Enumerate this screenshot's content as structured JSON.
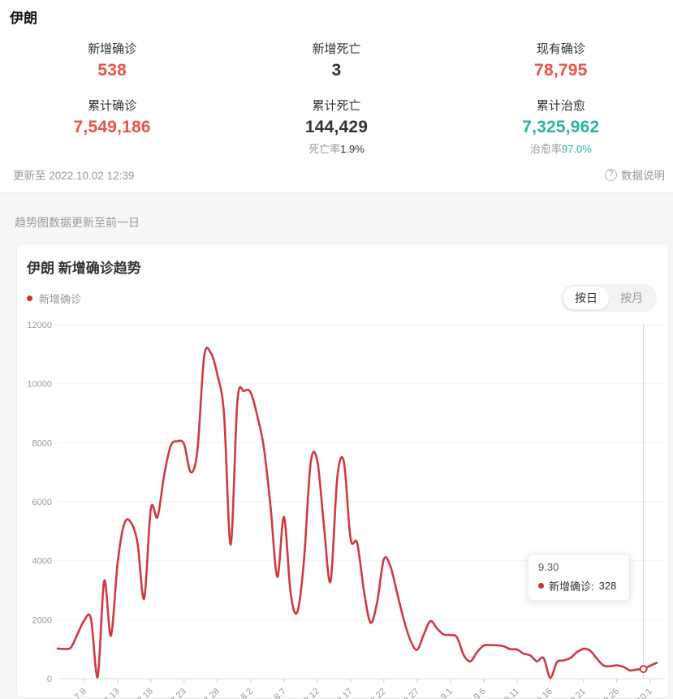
{
  "page": {
    "title": "伊朗"
  },
  "colors": {
    "stat_red": "#e8534a",
    "teal": "#29b3a3",
    "line_red": "#cf3a42",
    "dot_red": "#c5352f"
  },
  "stats": {
    "row1": [
      {
        "label": "新增确诊",
        "value": "538",
        "color": "red"
      },
      {
        "label": "新增死亡",
        "value": "3",
        "color": "dark"
      },
      {
        "label": "现有确诊",
        "value": "78,795",
        "color": "red"
      }
    ],
    "row2": [
      {
        "label": "累计确诊",
        "value": "7,549,186",
        "color": "red",
        "rate_prefix": "",
        "rate_value": ""
      },
      {
        "label": "累计死亡",
        "value": "144,429",
        "color": "dark",
        "rate_prefix": "死亡率",
        "rate_value": "1.9%"
      },
      {
        "label": "累计治愈",
        "value": "7,325,962",
        "color": "teal",
        "rate_prefix": "治愈率",
        "rate_value": "97.0%"
      }
    ]
  },
  "meta": {
    "updated_text": "更新至 2022.10.02 12:39",
    "help_glyph": "?",
    "data_note_label": "数据说明",
    "trend_note": "趋势图数据更新至前一日"
  },
  "chart_card": {
    "title": "伊朗 新增确诊趋势",
    "legend_label": "新增确诊",
    "toggles": [
      {
        "label": "按日",
        "active": true
      },
      {
        "label": "按月",
        "active": false
      }
    ],
    "tooltip": {
      "date": "9.30",
      "series_label": "新增确诊:",
      "value": "328"
    }
  },
  "chart_data": {
    "type": "line",
    "title": "伊朗 新增确诊趋势",
    "series_name": "新增确诊",
    "smooth": true,
    "grid": true,
    "legend_position": "top-left",
    "ylim": [
      0,
      12000
    ],
    "y_ticks": [
      0,
      2000,
      4000,
      6000,
      8000,
      10000,
      12000
    ],
    "x": [
      "7.4",
      "7.5",
      "7.6",
      "7.7",
      "7.8",
      "7.9",
      "7.10",
      "7.11",
      "7.12",
      "7.13",
      "7.14",
      "7.15",
      "7.16",
      "7.17",
      "7.18",
      "7.19",
      "7.20",
      "7.21",
      "7.22",
      "7.23",
      "7.24",
      "7.25",
      "7.26",
      "7.27",
      "7.28",
      "7.29",
      "7.30",
      "7.31",
      "8.1",
      "8.2",
      "8.3",
      "8.4",
      "8.5",
      "8.6",
      "8.7",
      "8.8",
      "8.9",
      "8.10",
      "8.11",
      "8.12",
      "8.13",
      "8.14",
      "8.15",
      "8.16",
      "8.17",
      "8.18",
      "8.19",
      "8.20",
      "8.21",
      "8.22",
      "8.23",
      "8.24",
      "8.25",
      "8.26",
      "8.27",
      "8.28",
      "8.29",
      "8.30",
      "8.31",
      "9.1",
      "9.2",
      "9.3",
      "9.4",
      "9.5",
      "9.6",
      "9.7",
      "9.8",
      "9.9",
      "9.10",
      "9.11",
      "9.12",
      "9.13",
      "9.14",
      "9.15",
      "9.16",
      "9.17",
      "9.18",
      "9.19",
      "9.20",
      "9.21",
      "9.22",
      "9.23",
      "9.24",
      "9.25",
      "9.26",
      "9.27",
      "9.28",
      "9.29",
      "9.30",
      "10.1",
      "10.2"
    ],
    "values": [
      1020,
      1010,
      1060,
      1520,
      1980,
      2030,
      40,
      3320,
      1460,
      3900,
      5250,
      5300,
      4600,
      2720,
      5760,
      5480,
      6900,
      7900,
      8050,
      7950,
      7000,
      7750,
      10900,
      11050,
      10300,
      8950,
      4550,
      9400,
      9750,
      9700,
      8900,
      7800,
      5800,
      3450,
      5480,
      2900,
      2260,
      4000,
      7300,
      7400,
      5200,
      3300,
      6800,
      7350,
      4750,
      4600,
      3000,
      1900,
      2600,
      4050,
      3800,
      2900,
      2000,
      1300,
      980,
      1500,
      1950,
      1700,
      1500,
      1480,
      1400,
      800,
      590,
      900,
      1120,
      1140,
      1130,
      1100,
      1000,
      990,
      850,
      790,
      590,
      700,
      30,
      560,
      620,
      700,
      900,
      1010,
      950,
      680,
      450,
      420,
      450,
      400,
      280,
      310,
      328,
      440,
      538
    ],
    "x_tick_labels": [
      "7.8",
      "7.13",
      "7.18",
      "7.23",
      "7.28",
      "8.2",
      "8.7",
      "8.12",
      "8.17",
      "8.22",
      "8.27",
      "9.1",
      "9.6",
      "9.11",
      "9.16",
      "9.21",
      "9.26",
      "10.1"
    ],
    "highlight": {
      "x": "9.30",
      "value": 328
    }
  }
}
